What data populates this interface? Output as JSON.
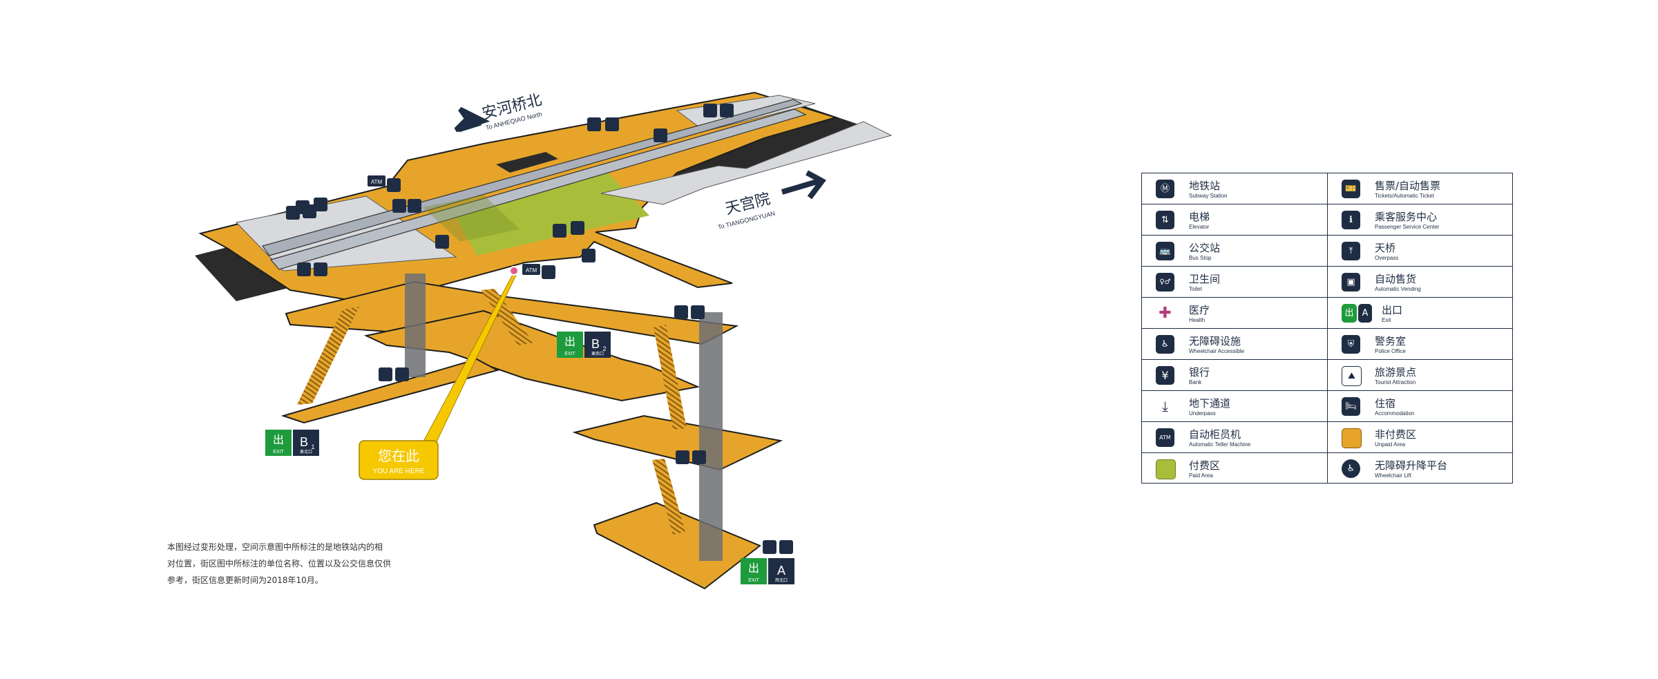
{
  "directions": {
    "north": {
      "zh": "安河桥北",
      "en": "To ANHEQIAO North"
    },
    "south": {
      "zh": "天宫院",
      "en": "To TIANGONGYUAN"
    }
  },
  "icon_labels": {
    "atm": "ATM"
  },
  "you_are_here": {
    "zh": "您在此",
    "en": "YOU ARE HERE"
  },
  "exits": [
    {
      "word": "EXIT",
      "letter": "B",
      "sub": "2",
      "caption": "東南口"
    },
    {
      "word": "EXIT",
      "letter": "B",
      "sub": "1",
      "caption": "東北口"
    },
    {
      "word": "EXIT",
      "letter": "A",
      "sub": "",
      "caption": "西北口"
    }
  ],
  "note": {
    "line1": "本图经过变形处理，空间示意图中所标注的是地铁站内的相",
    "line2": "对位置，街区图中所标注的单位名称、位置以及公交信息仅供",
    "line3": "参考，街区信息更新时间为2018年10月。"
  },
  "legend": {
    "left": [
      {
        "zh": "地铁站",
        "en": "Subway Station",
        "icon": "subway-icon",
        "glyph": "Ⓜ"
      },
      {
        "zh": "电梯",
        "en": "Elevator",
        "icon": "elevator-icon",
        "glyph": "⇅"
      },
      {
        "zh": "公交站",
        "en": "Bus Stop",
        "icon": "bus-icon",
        "glyph": "🚌"
      },
      {
        "zh": "卫生间",
        "en": "Toilet",
        "icon": "toilet-icon",
        "glyph": "♀♂"
      },
      {
        "zh": "医疗",
        "en": "Health",
        "icon": "health-icon",
        "glyph": "✚"
      },
      {
        "zh": "无障碍设施",
        "en": "Wheelchair Accessible",
        "icon": "wheelchair-icon",
        "glyph": "♿"
      },
      {
        "zh": "银行",
        "en": "Bank",
        "icon": "bank-icon",
        "glyph": "¥"
      },
      {
        "zh": "地下通道",
        "en": "Underpass",
        "icon": "underpass-icon",
        "glyph": "⤓"
      },
      {
        "zh": "自动柜员机",
        "en": "Automatic Teller Machine",
        "icon": "atm-icon",
        "glyph": "ATM"
      },
      {
        "zh": "付费区",
        "en": "Paid Area",
        "icon": "paid-area-swatch",
        "glyph": ""
      }
    ],
    "right": [
      {
        "zh": "售票/自动售票",
        "en": "Tickets/Automatic Ticket",
        "icon": "ticket-icon",
        "glyph": "🎫"
      },
      {
        "zh": "乘客服务中心",
        "en": "Passenger Service Center",
        "icon": "service-center-icon",
        "glyph": "ℹ"
      },
      {
        "zh": "天桥",
        "en": "Overpass",
        "icon": "overpass-icon",
        "glyph": "⤒"
      },
      {
        "zh": "自动售货",
        "en": "Automatic Vending",
        "icon": "vending-icon",
        "glyph": "▣"
      },
      {
        "zh": "出口",
        "en": "Exit",
        "icon": "exit-icon",
        "glyph": "出"
      },
      {
        "zh": "警务室",
        "en": "Police Office",
        "icon": "police-icon",
        "glyph": "⛨"
      },
      {
        "zh": "旅游景点",
        "en": "Tourist Attraction",
        "icon": "tourist-icon",
        "glyph": "⛰"
      },
      {
        "zh": "住宿",
        "en": "Accommodation",
        "icon": "accommodation-icon",
        "glyph": "🛏"
      },
      {
        "zh": "非付费区",
        "en": "Unpaid Area",
        "icon": "unpaid-area-swatch",
        "glyph": ""
      },
      {
        "zh": "无障碍升降平台",
        "en": "Wheelchair Lift",
        "icon": "wheelchair-lift-icon",
        "glyph": "♿"
      }
    ]
  },
  "colors": {
    "unpaid": "#e6a52a",
    "paid": "#a8be3a",
    "navy": "#1f2d44",
    "exit_green": "#1e9b3c",
    "you_are_here": "#f6c800",
    "health": "#b23b77"
  }
}
